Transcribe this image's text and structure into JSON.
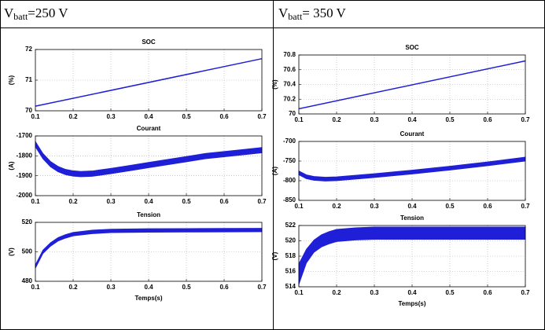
{
  "table": {
    "headers": [
      {
        "main": "V",
        "sub": "batt",
        "rest": "=250 V"
      },
      {
        "main": "V",
        "sub": "batt",
        "rest": "= 350 V"
      }
    ]
  },
  "chart_data": [
    {
      "type": "line",
      "title": "SOC",
      "ylabel": "(%)",
      "color": "#1f1fd8",
      "xlim": [
        0.1,
        0.7
      ],
      "xticks": [
        0.1,
        0.2,
        0.3,
        0.4,
        0.5,
        0.6,
        0.7
      ],
      "ylim": [
        70,
        72
      ],
      "yticks": [
        70,
        71,
        72
      ],
      "grid": true,
      "x": [
        0.1,
        0.7
      ],
      "values": [
        70.15,
        71.7
      ]
    },
    {
      "type": "band",
      "title": "Courant",
      "ylabel": "(A)",
      "color": "#1f1fd8",
      "xlim": [
        0.1,
        0.7
      ],
      "xticks": [
        0.1,
        0.2,
        0.3,
        0.4,
        0.5,
        0.6,
        0.7
      ],
      "ylim": [
        -2000,
        -1700
      ],
      "yticks": [
        -2000,
        -1900,
        -1800,
        -1700
      ],
      "grid": true,
      "x": [
        0.1,
        0.12,
        0.14,
        0.16,
        0.18,
        0.2,
        0.22,
        0.25,
        0.3,
        0.35,
        0.4,
        0.45,
        0.5,
        0.55,
        0.6,
        0.65,
        0.7
      ],
      "upper": [
        -1728,
        -1788,
        -1828,
        -1853,
        -1868,
        -1875,
        -1878,
        -1876,
        -1863,
        -1848,
        -1833,
        -1818,
        -1803,
        -1788,
        -1778,
        -1768,
        -1758
      ],
      "lower": [
        -1755,
        -1815,
        -1855,
        -1880,
        -1895,
        -1902,
        -1905,
        -1903,
        -1890,
        -1875,
        -1860,
        -1845,
        -1830,
        -1815,
        -1805,
        -1795,
        -1785
      ]
    },
    {
      "type": "band",
      "title": "Tension",
      "ylabel": "(V)",
      "xlabel": "Temps(s)",
      "color": "#1f1fd8",
      "xlim": [
        0.1,
        0.7
      ],
      "xticks": [
        0.1,
        0.2,
        0.3,
        0.4,
        0.5,
        0.6,
        0.7
      ],
      "ylim": [
        480,
        520
      ],
      "yticks": [
        480,
        500,
        520
      ],
      "grid": true,
      "x": [
        0.1,
        0.12,
        0.14,
        0.16,
        0.18,
        0.2,
        0.25,
        0.3,
        0.4,
        0.5,
        0.6,
        0.7
      ],
      "upper": [
        491.2,
        501.2,
        506.2,
        509.7,
        511.7,
        513.2,
        514.7,
        515.4,
        515.7,
        515.8,
        515.9,
        516
      ],
      "lower": [
        488.8,
        498.8,
        503.8,
        507.3,
        509.3,
        510.8,
        512.3,
        513,
        513.3,
        513.4,
        513.5,
        513.6
      ]
    },
    {
      "type": "line",
      "title": "SOC",
      "ylabel": "(%)",
      "color": "#1f1fd8",
      "xlim": [
        0.1,
        0.7
      ],
      "xticks": [
        0.1,
        0.2,
        0.3,
        0.4,
        0.5,
        0.6,
        0.7
      ],
      "ylim": [
        70,
        70.8
      ],
      "yticks": [
        70,
        70.2,
        70.4,
        70.6,
        70.8
      ],
      "grid": true,
      "x": [
        0.1,
        0.7
      ],
      "values": [
        70.07,
        70.72
      ]
    },
    {
      "type": "band",
      "title": "Courant",
      "ylabel": "(A)",
      "color": "#1f1fd8",
      "xlim": [
        0.1,
        0.7
      ],
      "xticks": [
        0.1,
        0.2,
        0.3,
        0.4,
        0.5,
        0.6,
        0.7
      ],
      "ylim": [
        -850,
        -700
      ],
      "yticks": [
        -850,
        -800,
        -750,
        -700
      ],
      "grid": true,
      "x": [
        0.1,
        0.12,
        0.14,
        0.17,
        0.2,
        0.3,
        0.4,
        0.5,
        0.6,
        0.7
      ],
      "upper": [
        -775,
        -785,
        -789,
        -791,
        -790,
        -782,
        -773,
        -763,
        -752,
        -740
      ],
      "lower": [
        -785,
        -795,
        -799,
        -801,
        -800,
        -792,
        -783,
        -773,
        -762,
        -750
      ]
    },
    {
      "type": "band",
      "title": "Tension",
      "ylabel": "(V)",
      "xlabel": "Temps(s)",
      "color": "#1f1fd8",
      "xlim": [
        0.1,
        0.7
      ],
      "xticks": [
        0.1,
        0.2,
        0.3,
        0.4,
        0.5,
        0.6,
        0.7
      ],
      "ylim": [
        514,
        522
      ],
      "yticks": [
        514,
        516,
        518,
        520,
        522
      ],
      "grid": true,
      "x": [
        0.1,
        0.12,
        0.14,
        0.16,
        0.18,
        0.2,
        0.25,
        0.3,
        0.4,
        0.5,
        0.6,
        0.7
      ],
      "upper": [
        517,
        518.9,
        520.1,
        520.8,
        521.2,
        521.5,
        521.7,
        521.8,
        521.8,
        521.8,
        521.8,
        521.8
      ],
      "lower": [
        514.3,
        517.1,
        518.5,
        519.2,
        519.6,
        519.9,
        520.1,
        520.2,
        520.2,
        520.2,
        520.2,
        520.2
      ]
    }
  ]
}
